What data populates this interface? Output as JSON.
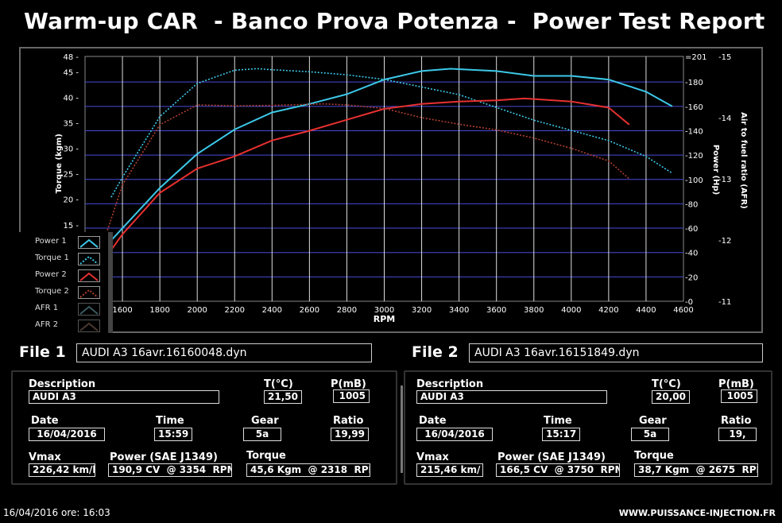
{
  "title": "Warm-up CAR  - Banco Prova Potenza -  Power Test Report",
  "legend": [
    {
      "label": "Power 1",
      "color": "#3cc8e8",
      "style": "solid"
    },
    {
      "label": "Torque 1",
      "color": "#3cc8e8",
      "style": "dotted"
    },
    {
      "label": "Power 2",
      "color": "#e83030",
      "style": "solid"
    },
    {
      "label": "Torque 2",
      "color": "#b04030",
      "style": "dotted"
    },
    {
      "label": "AFR 1",
      "color": "#3a5a60",
      "style": "solid"
    },
    {
      "label": "AFR 2",
      "color": "#4a3a30",
      "style": "solid"
    }
  ],
  "chart_data": {
    "type": "line",
    "xlabel": "RPM",
    "ylabel": "Torque (kgm)",
    "y2label": "Power (Hp)",
    "y3label": "Air to fuel ratio (AFR)",
    "xlim": [
      1400,
      4600
    ],
    "xticks": [
      1600,
      1800,
      2000,
      2200,
      2400,
      2600,
      2800,
      3000,
      3200,
      3400,
      3600,
      3800,
      4000,
      4200,
      4400,
      4600
    ],
    "ylim": [
      0,
      48
    ],
    "yticks": [
      15,
      20,
      25,
      30,
      35,
      40,
      45,
      48
    ],
    "y2lim": [
      0,
      201
    ],
    "y2ticks": [
      0,
      20,
      40,
      60,
      80,
      100,
      120,
      140,
      160,
      180,
      201
    ],
    "y3lim": [
      11,
      15
    ],
    "y3ticks": [
      11,
      12,
      13,
      14,
      15
    ],
    "grid": true,
    "legend_position": "bottom-left",
    "series": [
      {
        "name": "Power 1",
        "axis": "power",
        "color": "#3cc8e8",
        "style": "solid",
        "x": [
          1540,
          1600,
          1800,
          2000,
          2200,
          2400,
          2600,
          2800,
          3000,
          3200,
          3354,
          3600,
          3800,
          4000,
          4200,
          4400,
          4540
        ],
        "y": [
          50,
          60,
          93,
          121,
          141,
          155,
          162,
          170,
          182,
          189,
          190.9,
          189,
          185,
          185,
          182,
          172,
          160
        ]
      },
      {
        "name": "Torque 1",
        "axis": "torque",
        "color": "#3cc8e8",
        "style": "dotted",
        "x": [
          1540,
          1600,
          1800,
          2000,
          2200,
          2318,
          2400,
          2600,
          2800,
          3000,
          3200,
          3400,
          3600,
          3800,
          4000,
          4200,
          4400,
          4540
        ],
        "y": [
          20.4,
          24.3,
          36.2,
          42.7,
          45.3,
          45.6,
          45.4,
          45,
          44.4,
          43.5,
          42,
          40.5,
          38,
          35.5,
          33.5,
          31.5,
          28.4,
          25.1
        ]
      },
      {
        "name": "Power 2",
        "axis": "power",
        "color": "#e83030",
        "style": "solid",
        "x": [
          1540,
          1600,
          1800,
          2000,
          2200,
          2400,
          2600,
          2800,
          3000,
          3200,
          3400,
          3600,
          3750,
          3800,
          4000,
          4200,
          4310
        ],
        "y": [
          42,
          55,
          89,
          109,
          119,
          132,
          140,
          149,
          158,
          162,
          164,
          165,
          166.5,
          166,
          164,
          159,
          145
        ]
      },
      {
        "name": "Torque 2",
        "axis": "torque",
        "color": "#b04030",
        "style": "dotted",
        "x": [
          1520,
          1600,
          1800,
          2000,
          2200,
          2400,
          2675,
          2800,
          3000,
          3200,
          3400,
          3600,
          3800,
          4000,
          4200,
          4310
        ],
        "y": [
          13.9,
          22.8,
          34.6,
          38.5,
          38.3,
          38.4,
          38.7,
          38.5,
          37.8,
          36,
          34.7,
          33.6,
          32,
          30,
          27.5,
          24
        ]
      }
    ]
  },
  "files": [
    {
      "label": "File 1",
      "filename": "AUDI A3 16avr.16160048.dyn",
      "description_label": "Description",
      "description": "AUDI A3",
      "temp_label": "T(°C)",
      "temp": "21,50",
      "press_label": "P(mB)",
      "press": "1005",
      "date_label": "Date",
      "date": "16/04/2016",
      "time_label": "Time",
      "time": "15:59",
      "gear_label": "Gear",
      "gear": "5a",
      "ratio_label": "Ratio",
      "ratio": "19,99",
      "vmax_label": "Vmax",
      "vmax": "226,42 km/h",
      "power_label": "Power (SAE J1349)",
      "power": "190,9 CV  @ 3354  RPM",
      "torque_label": "Torque",
      "torque": "45,6 Kgm  @ 2318  RPM"
    },
    {
      "label": "File 2",
      "filename": "AUDI A3 16avr.16151849.dyn",
      "description_label": "Description",
      "description": "AUDI A3",
      "temp_label": "T(°C)",
      "temp": "20,00",
      "press_label": "P(mB)",
      "press": "1005",
      "date_label": "Date",
      "date": "16/04/2016",
      "time_label": "Time",
      "time": "15:17",
      "gear_label": "Gear",
      "gear": "5a",
      "ratio_label": "Ratio",
      "ratio": "19,",
      "vmax_label": "Vmax",
      "vmax": "215,46 km/",
      "power_label": "Power (SAE J1349)",
      "power": "166,5 CV  @ 3750  RPM",
      "torque_label": "Torque",
      "torque": "38,7 Kgm  @ 2675  RPM"
    }
  ],
  "footer": {
    "datetime": "16/04/2016  ore: 16:03",
    "website": "WWW.PUISSANCE-INJECTION.FR"
  }
}
